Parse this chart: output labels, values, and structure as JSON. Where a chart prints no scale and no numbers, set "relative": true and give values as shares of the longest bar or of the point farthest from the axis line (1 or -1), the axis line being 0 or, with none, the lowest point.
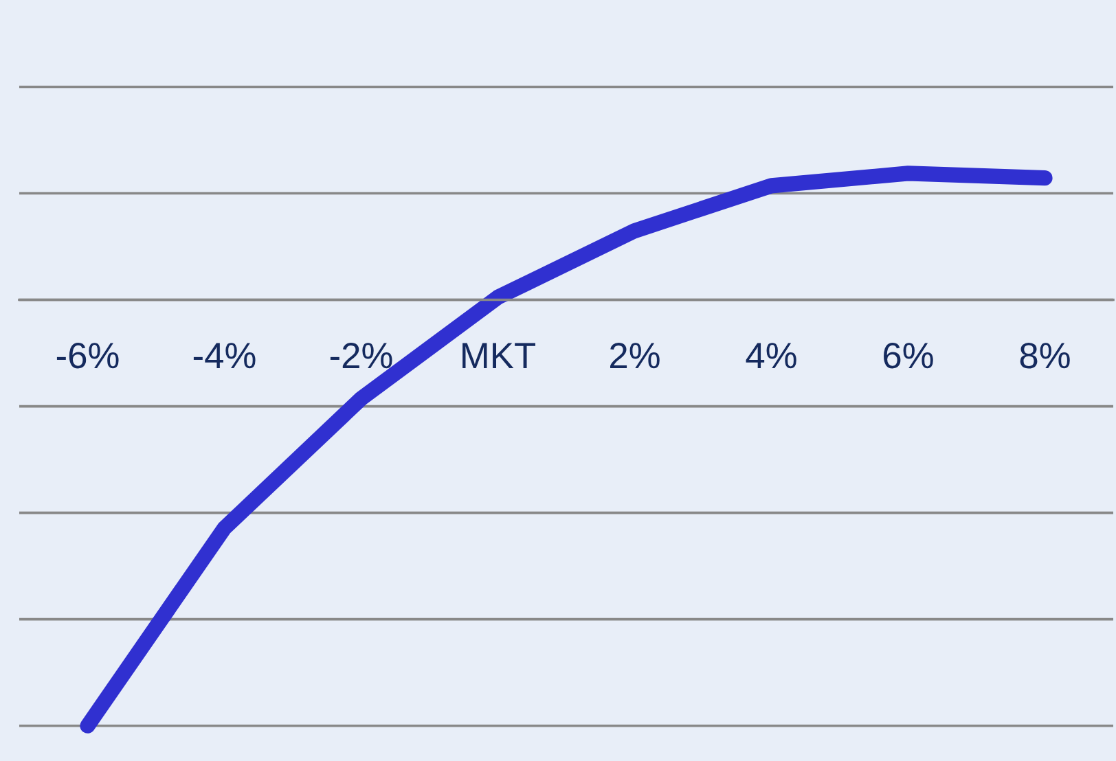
{
  "chart_data": {
    "type": "line",
    "relative": true,
    "grid": "y",
    "line_style": "solid",
    "categories": [
      "-6%",
      "-4%",
      "-2%",
      "MKT",
      "2%",
      "4%",
      "6%",
      "8%"
    ],
    "series": [
      {
        "color": "#3030d0",
        "values": [
          -1,
          -0.536,
          -0.232,
          0.006,
          0.162,
          0.268,
          0.297,
          0.286
        ]
      }
    ]
  }
}
